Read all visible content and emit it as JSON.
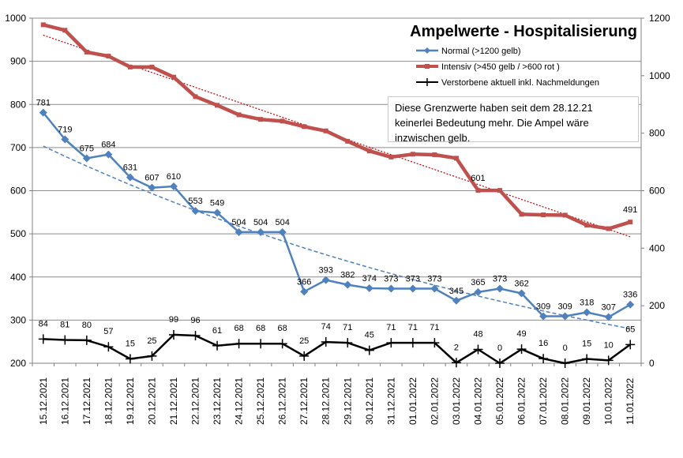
{
  "chart_data": {
    "type": "line",
    "title": "Ampelwerte - Hospitalisierung",
    "note": "Diese Grenzwerte haben seit dem 28.12.21 keinerlei Bedeutung mehr. Die Ampel wäre inzwischen gelb.",
    "categories": [
      "15.12.2021",
      "16.12.2021",
      "17.12.2021",
      "18.12.2021",
      "19.12.2021",
      "20.12.2021",
      "21.12.2021",
      "22.12.2021",
      "23.12.2021",
      "24.12.2021",
      "25.12.2021",
      "26.12.2021",
      "27.12.2021",
      "28.12.2021",
      "29.12.2021",
      "30.12.2021",
      "31.12.2021",
      "01.01.2022",
      "02.01.2022",
      "03.01.2022",
      "04.01.2022",
      "05.01.2022",
      "06.01.2022",
      "07.01.2022",
      "08.01.2022",
      "09.01.2022",
      "10.01.2022",
      "11.01.2022"
    ],
    "y_left": {
      "min": 200,
      "max": 1000,
      "step": 100,
      "ticks": [
        "200",
        "300",
        "400",
        "500",
        "600",
        "700",
        "800",
        "900",
        "1000"
      ]
    },
    "y_right": {
      "min": 0,
      "max": 1200,
      "step": 200,
      "ticks": [
        "0",
        "200",
        "400",
        "600",
        "800",
        "1000",
        "1200"
      ]
    },
    "grid": true,
    "legend_position": "top-right",
    "series": [
      {
        "name": "Normal (>1200 gelb)",
        "axis": "left",
        "color": "#4f81bd",
        "marker": "diamond",
        "values": [
          781,
          719,
          675,
          684,
          631,
          607,
          610,
          553,
          549,
          504,
          504,
          504,
          366,
          393,
          382,
          374,
          373,
          373,
          373,
          345,
          365,
          373,
          362,
          309,
          309,
          318,
          307,
          336
        ],
        "labels": [
          "781",
          "719",
          "675",
          "684",
          "631",
          "607",
          "610",
          "553",
          "549",
          "504",
          "504",
          "504",
          "366",
          "393",
          "382",
          "374",
          "373",
          "373",
          "373",
          "345",
          "365",
          "373",
          "362",
          "309",
          "309",
          "318",
          "307",
          "336"
        ],
        "trendline": "dashed"
      },
      {
        "name": "Intensiv (>450 gelb / >600 rot )",
        "axis": "right",
        "color": "#c0504d",
        "marker": "square",
        "values": [
          1177,
          1158,
          1082,
          1068,
          1030,
          1030,
          995,
          927,
          897,
          864,
          848,
          842,
          823,
          808,
          772,
          738,
          717,
          727,
          725,
          713,
          601,
          601,
          518,
          516,
          515,
          480,
          468,
          491
        ],
        "labels": [
          "601",
          "491"
        ],
        "label_indices": [
          20,
          27
        ],
        "trendline": "dotted"
      },
      {
        "name": "Verstorbene aktuell inkl. Nachmeldungen",
        "axis": "right",
        "color": "#000000",
        "marker": "plus",
        "values": [
          84,
          81,
          80,
          57,
          15,
          25,
          99,
          96,
          61,
          68,
          68,
          68,
          25,
          74,
          71,
          45,
          71,
          71,
          71,
          2,
          48,
          0,
          49,
          16,
          0,
          15,
          10,
          65
        ],
        "labels": [
          "84",
          "81",
          "80",
          "57",
          "15",
          "25",
          "99",
          "96",
          "61",
          "68",
          "68",
          "68",
          "25",
          "74",
          "71",
          "45",
          "71",
          "71",
          "71",
          "2",
          "48",
          "0",
          "49",
          "16",
          "0",
          "15",
          "10",
          "65"
        ]
      }
    ]
  }
}
